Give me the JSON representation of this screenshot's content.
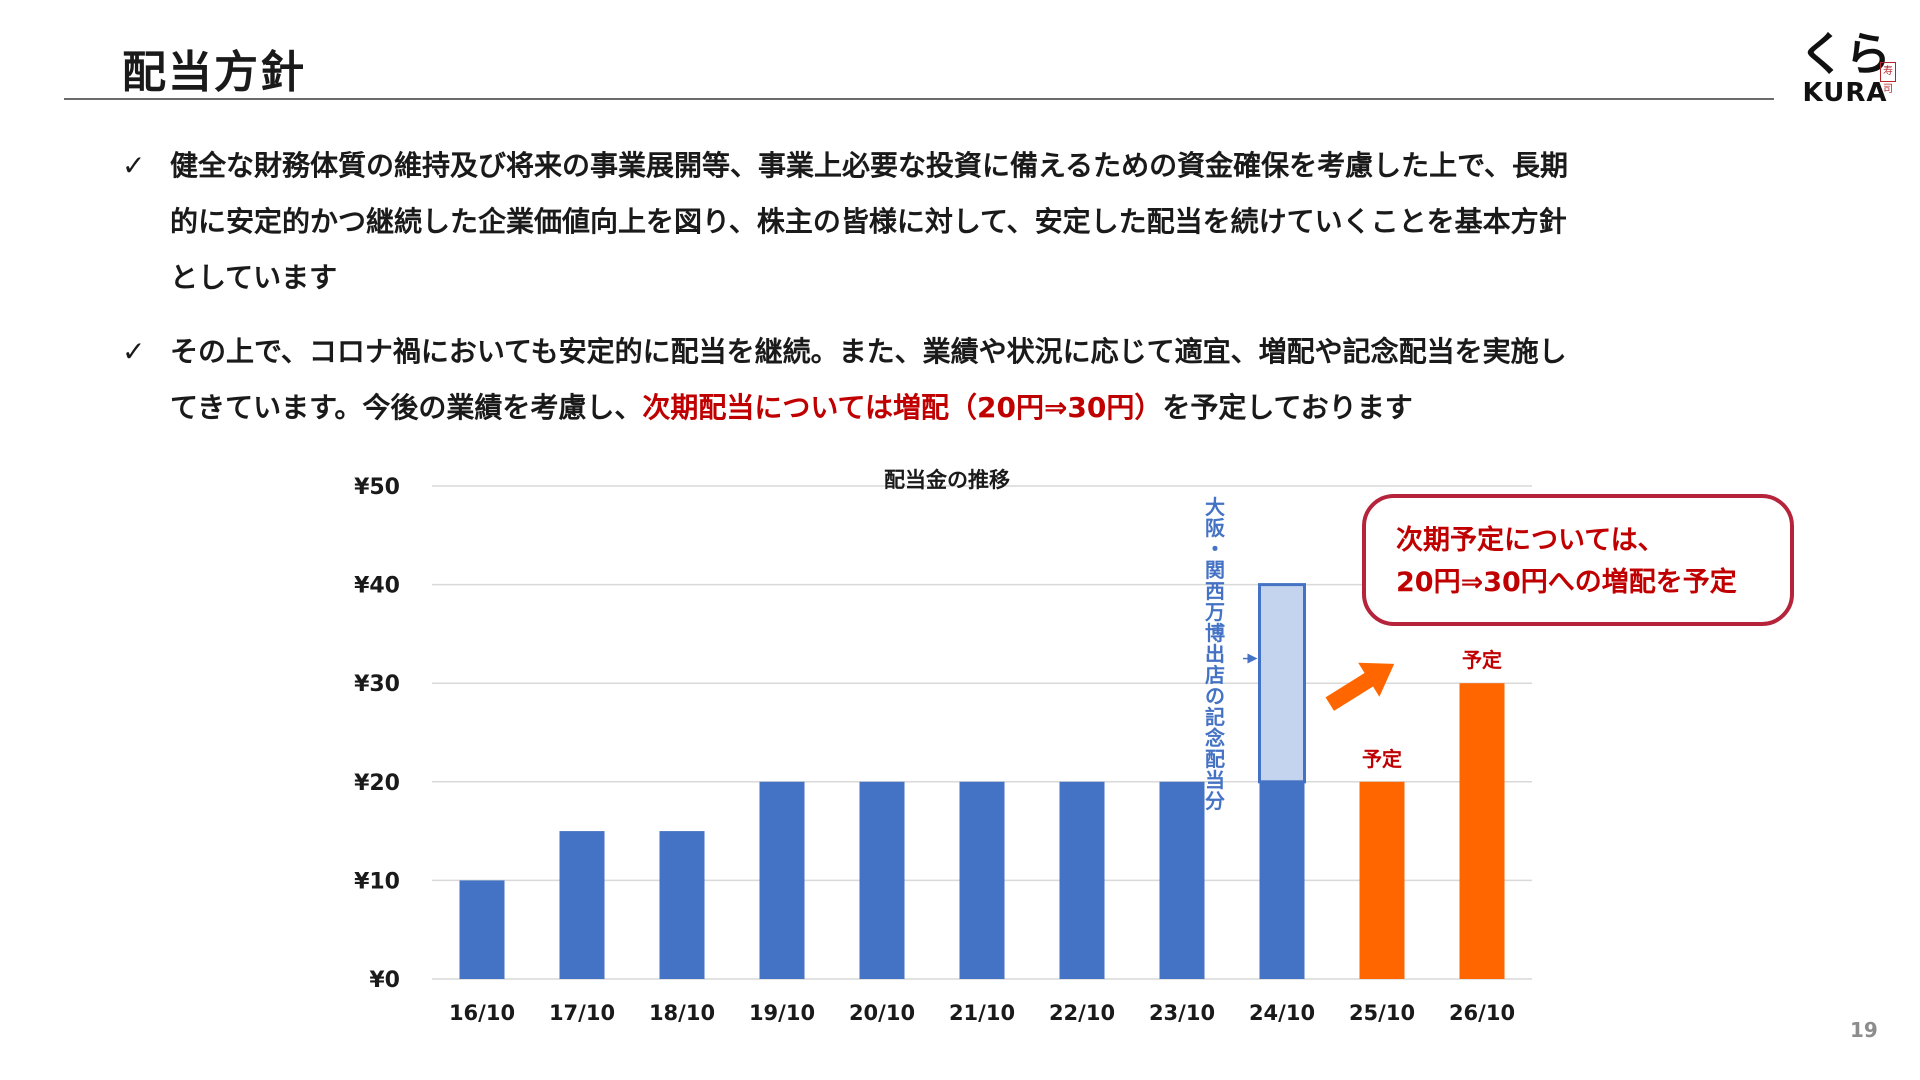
{
  "header": {
    "title": "配当方針"
  },
  "logo": {
    "mark": "くら",
    "seal": "寿司",
    "word": "KURA"
  },
  "bullets": [
    {
      "check": "✓",
      "lines": [
        "健全な財務体質の維持及び将来の事業展開等、事業上必要な投資に備えるための資金確保を考慮した上で、長期",
        "的に安定的かつ継続した企業価値向上を図り、株主の皆様に対して、安定した配当を続けていくことを基本方針",
        "としています"
      ]
    },
    {
      "check": "✓",
      "line1": "その上で、コロナ禍においても安定的に配当を継続。また、業績や状況に応じて適宜、増配や記念配当を実施し",
      "line2_prefix": "てきています。今後の業績を考慮し、",
      "line2_highlight": "次期配当については増配（20円⇒30円）",
      "line2_suffix": "を予定しております"
    }
  ],
  "chart_data": {
    "type": "bar",
    "title": "配当金の推移",
    "categories": [
      "16/10",
      "17/10",
      "18/10",
      "19/10",
      "20/10",
      "21/10",
      "22/10",
      "23/10",
      "24/10",
      "25/10",
      "26/10"
    ],
    "series": [
      {
        "values": [
          10,
          15,
          15,
          20,
          20,
          20,
          20,
          20,
          20,
          null,
          null
        ],
        "color": "#4472c4"
      },
      {
        "values": [
          null,
          null,
          null,
          null,
          null,
          null,
          null,
          null,
          20,
          null,
          null
        ],
        "color": "#c5d4ee",
        "stacked_on": 0
      },
      {
        "values": [
          null,
          null,
          null,
          null,
          null,
          null,
          null,
          null,
          null,
          20,
          30
        ],
        "color": "#ff6600"
      }
    ],
    "yticks": [
      "¥0",
      "¥10",
      "¥20",
      "¥30",
      "¥40",
      "¥50"
    ],
    "ylim": [
      0,
      50
    ],
    "grid": true,
    "annotations": {
      "commemorative": "大阪・関西万博出店の記念配当分",
      "forecast_label": "予定"
    },
    "callout": [
      "次期予定については、",
      "20円⇒30円への増配を予定"
    ],
    "colors": {
      "regular": "#4472c4",
      "commemorative": "#c5d4ee",
      "forecast": "#ff6600",
      "forecast_text": "#c00000",
      "arrow": "#ff6600"
    }
  },
  "page_number": "19"
}
